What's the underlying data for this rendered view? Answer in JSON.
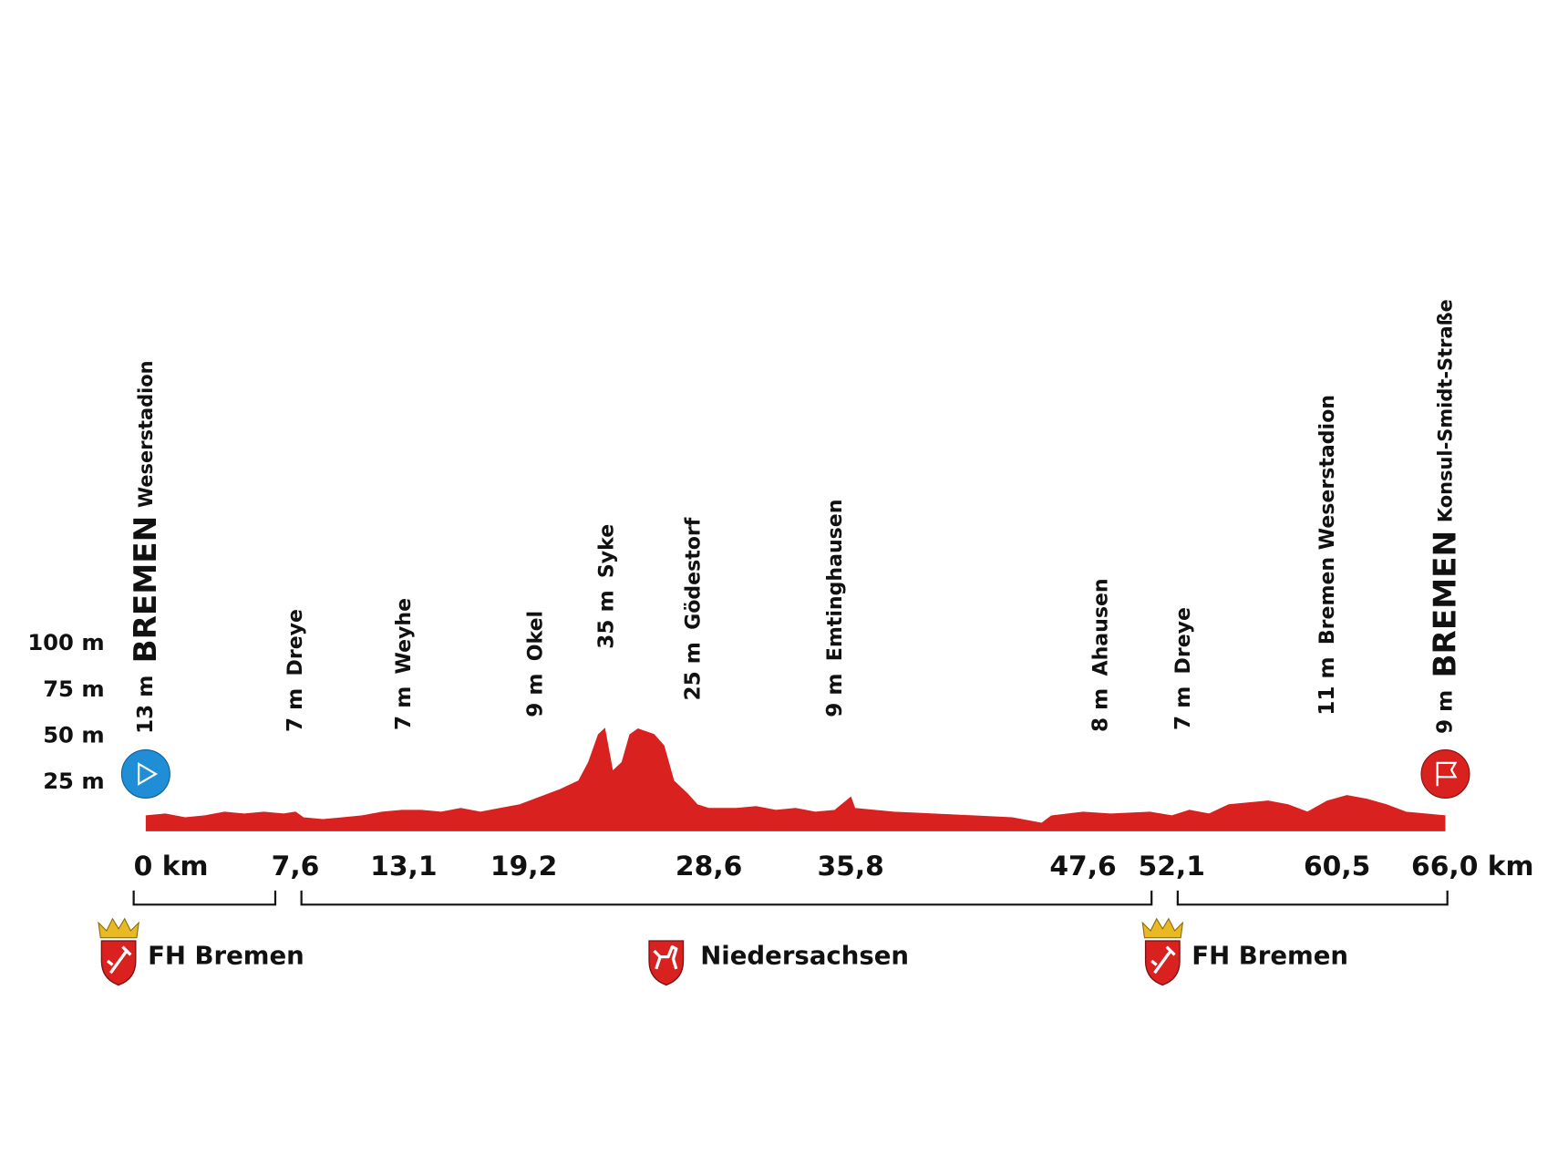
{
  "chart_data": {
    "type": "area",
    "color": "#d9211f",
    "start_color": "#1f8ed6",
    "xlim": [
      0,
      66
    ],
    "ylim": [
      0,
      100
    ],
    "yticks": [
      {
        "value": 25,
        "label": "25 m"
      },
      {
        "value": 50,
        "label": "50 m"
      },
      {
        "value": 75,
        "label": "75 m"
      },
      {
        "value": 100,
        "label": "100 m"
      }
    ],
    "xticks": [
      {
        "value": 0,
        "label": "0 km"
      },
      {
        "value": 7.6,
        "label": "7,6"
      },
      {
        "value": 13.1,
        "label": "13,1"
      },
      {
        "value": 19.2,
        "label": "19,2"
      },
      {
        "value": 28.6,
        "label": "28,6"
      },
      {
        "value": 35.8,
        "label": "35,8"
      },
      {
        "value": 47.6,
        "label": "47,6"
      },
      {
        "value": 52.1,
        "label": "52,1"
      },
      {
        "value": 60.5,
        "label": "60,5"
      },
      {
        "value": 66.0,
        "label": "66,0 km"
      }
    ],
    "x": [
      0,
      1,
      2,
      3,
      4,
      5,
      6,
      7,
      7.6,
      8,
      9,
      10,
      11,
      12,
      13,
      14,
      15,
      16,
      17,
      18,
      19,
      20,
      21,
      22,
      22.5,
      23,
      23.3,
      23.7,
      24.2,
      24.6,
      25,
      25.8,
      26.3,
      26.8,
      27.5,
      28,
      28.6,
      29,
      30,
      31,
      32,
      33,
      34,
      35,
      35.8,
      36,
      38,
      40,
      42,
      44,
      45.5,
      46,
      47.6,
      49,
      51,
      52.1,
      53,
      54,
      55,
      57,
      58,
      59,
      60,
      61,
      62,
      63,
      64,
      65,
      66
    ],
    "values": [
      6,
      7,
      5,
      6,
      8,
      7,
      8,
      7,
      8,
      5,
      4,
      5,
      6,
      8,
      9,
      9,
      8,
      10,
      8,
      10,
      12,
      16,
      20,
      25,
      35,
      50,
      53,
      30,
      35,
      50,
      53,
      50,
      44,
      25,
      18,
      12,
      10,
      10,
      10,
      11,
      9,
      10,
      8,
      9,
      16,
      10,
      8,
      7,
      6,
      5,
      2,
      6,
      8,
      7,
      8,
      6,
      9,
      7,
      12,
      14,
      12,
      8,
      14,
      17,
      15,
      12,
      8,
      7,
      6
    ],
    "waypoints": [
      {
        "km": 0,
        "elevation": "13 m",
        "name": "BREMEN",
        "detail": "Weserstadion"
      },
      {
        "km": 7.6,
        "elevation": "7 m",
        "name": "Dreye"
      },
      {
        "km": 13.1,
        "elevation": "7 m",
        "name": "Weyhe"
      },
      {
        "km": 19.8,
        "elevation": "9 m",
        "name": "Okel"
      },
      {
        "km": 23.4,
        "elevation": "35 m",
        "name": "Syke"
      },
      {
        "km": 27.8,
        "elevation": "25 m",
        "name": "Gödestorf"
      },
      {
        "km": 35,
        "elevation": "9 m",
        "name": "Emtinghausen"
      },
      {
        "km": 48.5,
        "elevation": "8 m",
        "name": "Ahausen"
      },
      {
        "km": 52.7,
        "elevation": "7 m",
        "name": "Dreye"
      },
      {
        "km": 60,
        "elevation": "11 m",
        "name": "Bremen Weserstadion"
      },
      {
        "km": 66,
        "elevation": "9 m",
        "name": "BREMEN",
        "detail": "Konsul-Smidt-Straße"
      }
    ],
    "regions": [
      {
        "name": "FH Bremen",
        "from": 0,
        "to": 7.6,
        "emblem": "bremen"
      },
      {
        "name": "Niedersachsen",
        "from": 7.6,
        "to": 52.1,
        "emblem": "niedersachsen"
      },
      {
        "name": "FH Bremen",
        "from": 52.1,
        "to": 66,
        "emblem": "bremen"
      }
    ]
  }
}
